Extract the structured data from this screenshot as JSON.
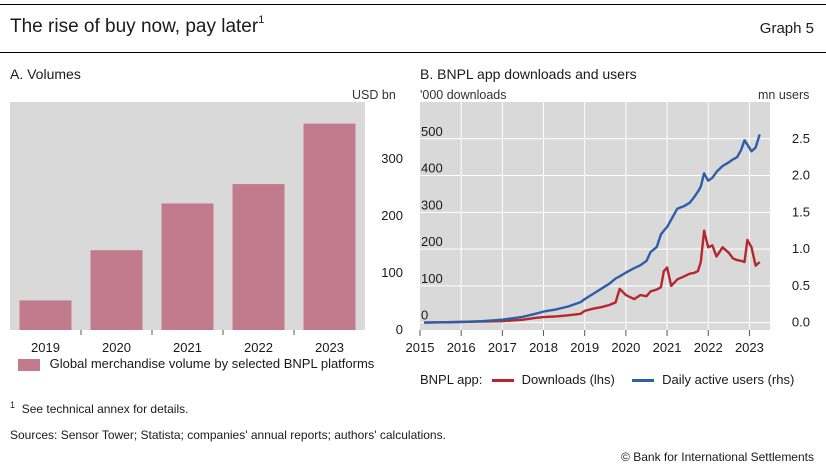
{
  "header": {
    "title": "The rise of buy now, pay later",
    "title_sup": "1",
    "graph_label": "Graph 5"
  },
  "colors": {
    "plot_bg": "#d9d9d9",
    "bar": "#c27b8c",
    "downloads": "#b5272d",
    "users": "#2f5ea8"
  },
  "panel_a": {
    "title": "A. Volumes",
    "unit_right": "USD bn",
    "legend_label": "Global merchandise volume by selected BNPL platforms"
  },
  "panel_b": {
    "title": "B. BNPL app downloads and users",
    "unit_left": "'000 downloads",
    "unit_right": "mn users",
    "legend_prefix": "BNPL app:",
    "legend_downloads": "Downloads (lhs)",
    "legend_users": "Daily active users (rhs)"
  },
  "chart_data": [
    {
      "type": "bar",
      "title": "A. Volumes",
      "categories": [
        "2019",
        "2020",
        "2021",
        "2022",
        "2023"
      ],
      "values": [
        52,
        140,
        222,
        256,
        362
      ],
      "ylabel": "USD bn",
      "ylim": [
        0,
        400
      ],
      "yticks": [
        0,
        100,
        200,
        300
      ],
      "ytick_labels": [
        "0",
        "100",
        "200",
        "300"
      ],
      "axis_side": "right",
      "grid": false,
      "legend_position": "bottom",
      "series": [
        {
          "name": "Global merchandise volume by selected BNPL platforms",
          "values": [
            52,
            140,
            222,
            256,
            362
          ]
        }
      ]
    },
    {
      "type": "line",
      "title": "B. BNPL app downloads and users",
      "xlim": [
        2015.0,
        2023.5
      ],
      "xticks": [
        "2015",
        "2016",
        "2017",
        "2018",
        "2019",
        "2020",
        "2021",
        "2022",
        "2023"
      ],
      "y_left": {
        "label": "'000 downloads",
        "ylim": [
          -20,
          600
        ],
        "ticks": [
          0,
          100,
          200,
          300,
          400,
          500
        ]
      },
      "y_right": {
        "label": "mn users",
        "ylim": [
          -0.1,
          3.0
        ],
        "ticks": [
          "0.0",
          "0.5",
          "1.0",
          "1.5",
          "2.0",
          "2.5"
        ]
      },
      "grid": true,
      "legend_position": "bottom",
      "series": [
        {
          "name": "Downloads (lhs)",
          "axis": "left",
          "x": [
            2015.1,
            2015.5,
            2016.0,
            2016.5,
            2017.0,
            2017.5,
            2017.8,
            2018.0,
            2018.3,
            2018.6,
            2018.9,
            2019.0,
            2019.2,
            2019.4,
            2019.6,
            2019.75,
            2019.85,
            2020.0,
            2020.2,
            2020.35,
            2020.5,
            2020.6,
            2020.75,
            2020.85,
            2020.92,
            2021.0,
            2021.1,
            2021.25,
            2021.4,
            2021.55,
            2021.65,
            2021.75,
            2021.82,
            2021.9,
            2022.0,
            2022.1,
            2022.2,
            2022.35,
            2022.5,
            2022.6,
            2022.7,
            2022.8,
            2022.88,
            2022.95,
            2023.05,
            2023.15,
            2023.25
          ],
          "y": [
            0,
            1,
            2,
            3,
            4,
            8,
            13,
            15,
            17,
            20,
            24,
            32,
            38,
            42,
            48,
            55,
            92,
            75,
            64,
            75,
            72,
            85,
            90,
            96,
            140,
            150,
            100,
            118,
            125,
            133,
            135,
            140,
            165,
            250,
            205,
            210,
            180,
            205,
            190,
            175,
            170,
            168,
            165,
            225,
            205,
            155,
            165
          ]
        },
        {
          "name": "Daily active users (rhs)",
          "axis": "right",
          "x": [
            2015.1,
            2015.5,
            2016.0,
            2016.5,
            2017.0,
            2017.5,
            2017.8,
            2018.0,
            2018.3,
            2018.6,
            2018.9,
            2019.0,
            2019.2,
            2019.4,
            2019.6,
            2019.75,
            2019.85,
            2020.0,
            2020.2,
            2020.35,
            2020.5,
            2020.6,
            2020.75,
            2020.85,
            2020.92,
            2021.0,
            2021.1,
            2021.25,
            2021.4,
            2021.55,
            2021.65,
            2021.75,
            2021.82,
            2021.9,
            2022.0,
            2022.1,
            2022.2,
            2022.35,
            2022.5,
            2022.6,
            2022.7,
            2022.8,
            2022.88,
            2022.95,
            2023.05,
            2023.15,
            2023.25
          ],
          "y": [
            0.0,
            0.005,
            0.01,
            0.02,
            0.04,
            0.08,
            0.12,
            0.15,
            0.18,
            0.22,
            0.28,
            0.32,
            0.39,
            0.46,
            0.53,
            0.6,
            0.63,
            0.68,
            0.74,
            0.78,
            0.84,
            0.96,
            1.03,
            1.2,
            1.25,
            1.3,
            1.4,
            1.55,
            1.58,
            1.63,
            1.7,
            1.78,
            1.85,
            2.03,
            1.93,
            1.97,
            2.05,
            2.13,
            2.18,
            2.22,
            2.25,
            2.35,
            2.48,
            2.42,
            2.33,
            2.38,
            2.56
          ]
        }
      ]
    }
  ],
  "footnotes": {
    "note1_marker": "1",
    "note1_text": "See technical annex for details.",
    "sources": "Sources: Sensor Tower; Statista; companies' annual reports; authors' calculations.",
    "copyright": "© Bank for International Settlements"
  }
}
